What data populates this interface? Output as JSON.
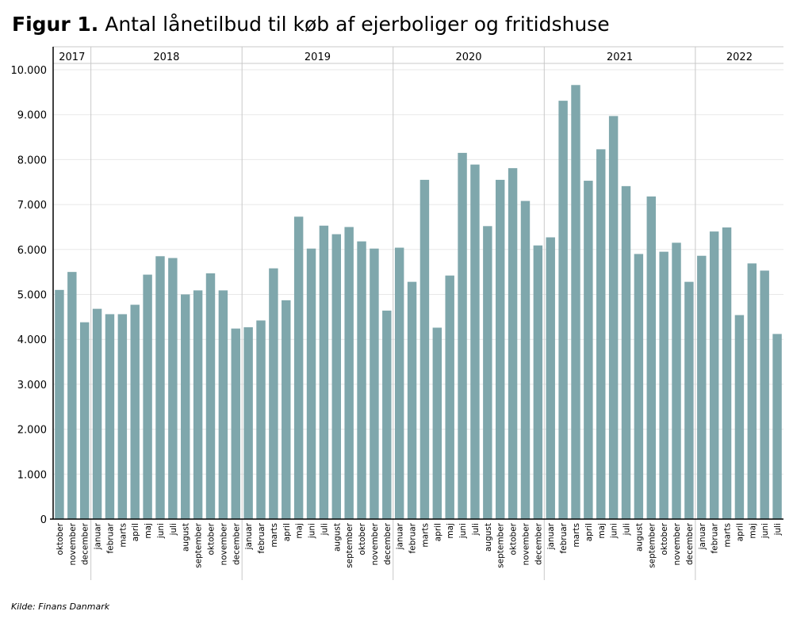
{
  "title": {
    "label": "Figur 1.",
    "text": "Antal lånetilbud til køb af ejerboliger og fritidshuse"
  },
  "source": "Kilde: Finans Danmark",
  "colors": {
    "bar": "#7fa7ac",
    "axis": "#000000",
    "grid": "#e8e8e8",
    "separator": "#c8c8c8"
  },
  "chart_data": {
    "type": "bar",
    "ylim": [
      0,
      10000
    ],
    "yticks": [
      0,
      1000,
      2000,
      3000,
      4000,
      5000,
      6000,
      7000,
      8000,
      9000,
      10000
    ],
    "ytick_labels": [
      "0",
      "1.000",
      "2.000",
      "3.000",
      "4.000",
      "5.000",
      "6.000",
      "7.000",
      "8.000",
      "9.000",
      "10.000"
    ],
    "grid": true,
    "years": [
      {
        "label": "2017",
        "count": 3
      },
      {
        "label": "2018",
        "count": 12
      },
      {
        "label": "2019",
        "count": 12
      },
      {
        "label": "2020",
        "count": 12
      },
      {
        "label": "2021",
        "count": 12
      },
      {
        "label": "2022",
        "count": 7
      }
    ],
    "categories": [
      "oktober",
      "november",
      "december",
      "januar",
      "februar",
      "marts",
      "april",
      "maj",
      "juni",
      "juli",
      "august",
      "september",
      "oktober",
      "november",
      "december",
      "januar",
      "februar",
      "marts",
      "april",
      "maj",
      "juni",
      "juli",
      "august",
      "september",
      "oktober",
      "november",
      "december",
      "januar",
      "februar",
      "marts",
      "april",
      "maj",
      "juni",
      "juli",
      "august",
      "september",
      "oktober",
      "november",
      "december",
      "januar",
      "februar",
      "marts",
      "april",
      "maj",
      "juni",
      "juli",
      "august",
      "september",
      "oktober",
      "november",
      "december",
      "januar",
      "februar",
      "marts",
      "april",
      "maj",
      "juni",
      "juli"
    ],
    "values": [
      5100,
      5500,
      4380,
      4680,
      4560,
      4560,
      4770,
      5440,
      5850,
      5810,
      5000,
      5090,
      5470,
      5090,
      4240,
      4270,
      4420,
      5580,
      4870,
      6730,
      6020,
      6530,
      6340,
      6500,
      6180,
      6020,
      4640,
      6040,
      5280,
      7550,
      4260,
      5420,
      8150,
      7890,
      6520,
      7550,
      7810,
      7080,
      6090,
      6270,
      9310,
      9660,
      7530,
      8230,
      8970,
      7410,
      5900,
      7180,
      5950,
      6150,
      5280,
      5860,
      6400,
      6490,
      4540,
      5690,
      5530,
      4120
    ]
  }
}
